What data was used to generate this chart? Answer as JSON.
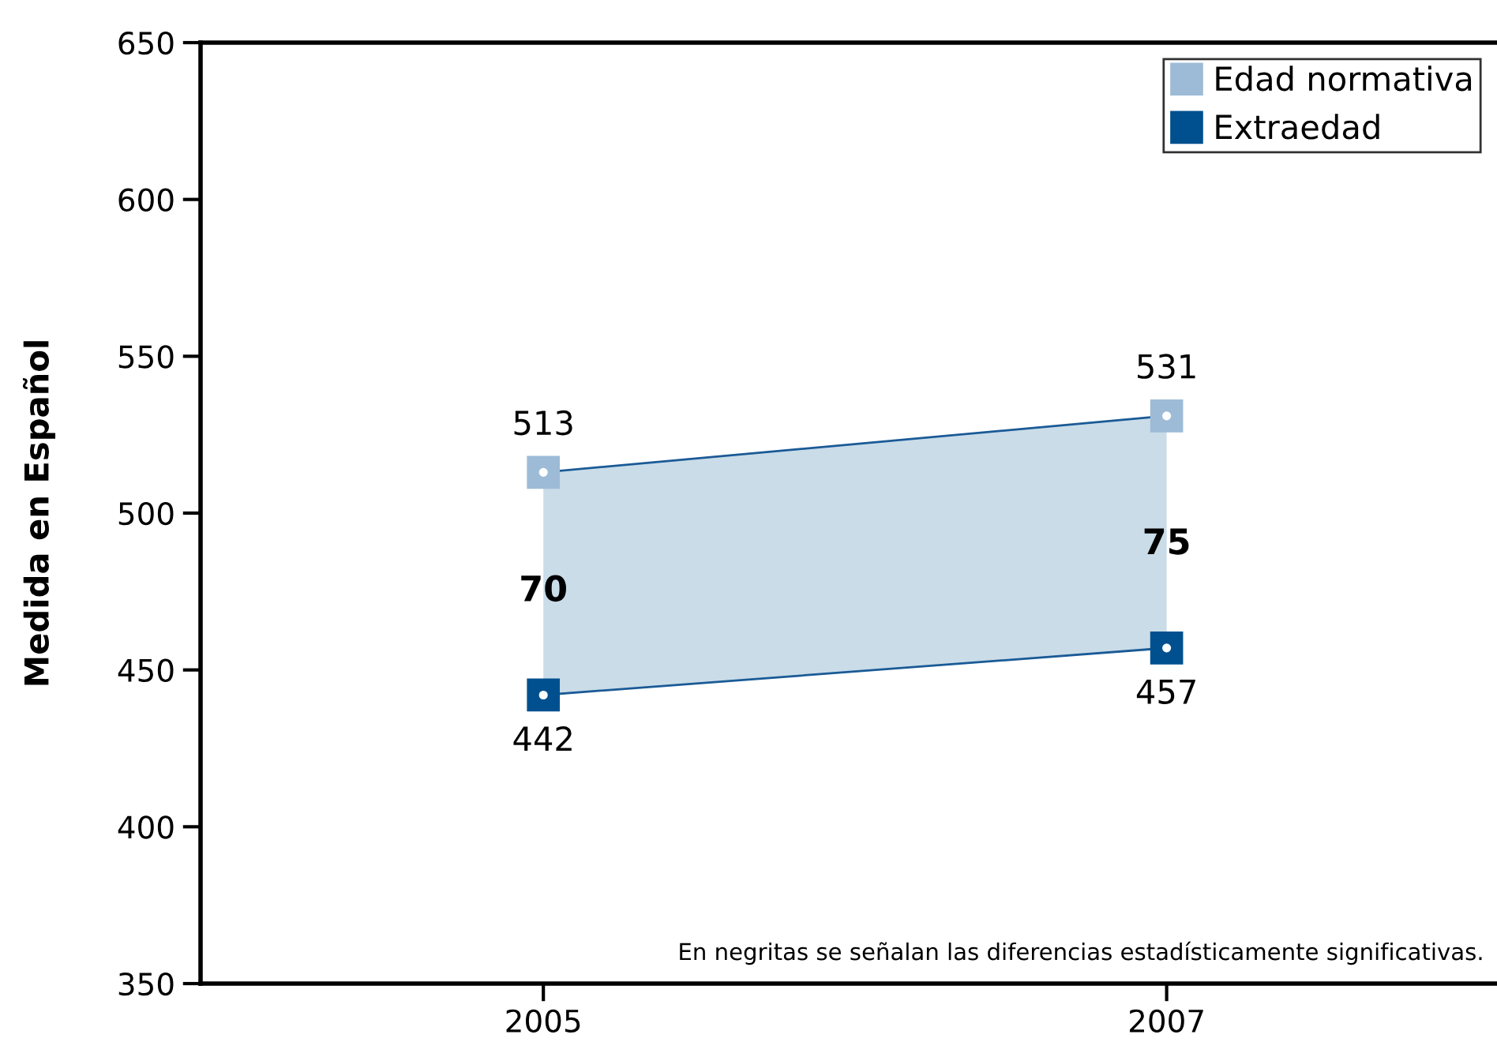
{
  "chart_data": {
    "type": "line",
    "ylabel": "Medida en Español",
    "x": [
      2005,
      2007
    ],
    "xlim": [
      2003.9,
      2008.06
    ],
    "xticks": [
      2005,
      2007
    ],
    "ylim": [
      350,
      650
    ],
    "yticks": [
      350,
      400,
      450,
      500,
      550,
      600,
      650
    ],
    "series": [
      {
        "name": "Edad normativa",
        "color": "#9dbbd6",
        "values": [
          513,
          531
        ],
        "lower": [
          442,
          457
        ],
        "upper": [
          513,
          531
        ]
      },
      {
        "name": "Extraedad",
        "color": "#00508f",
        "values": [
          442,
          457
        ]
      }
    ],
    "data_labels": true,
    "marker": "square",
    "line_style": "solid",
    "legend": "top right",
    "grid": false,
    "annotations": [
      {
        "text": "70",
        "x": 2005,
        "y": 475
      },
      {
        "text": "75",
        "x": 2007,
        "y": 490
      },
      "En negritas se señalan las diferencias estadísticamente significativas."
    ]
  }
}
